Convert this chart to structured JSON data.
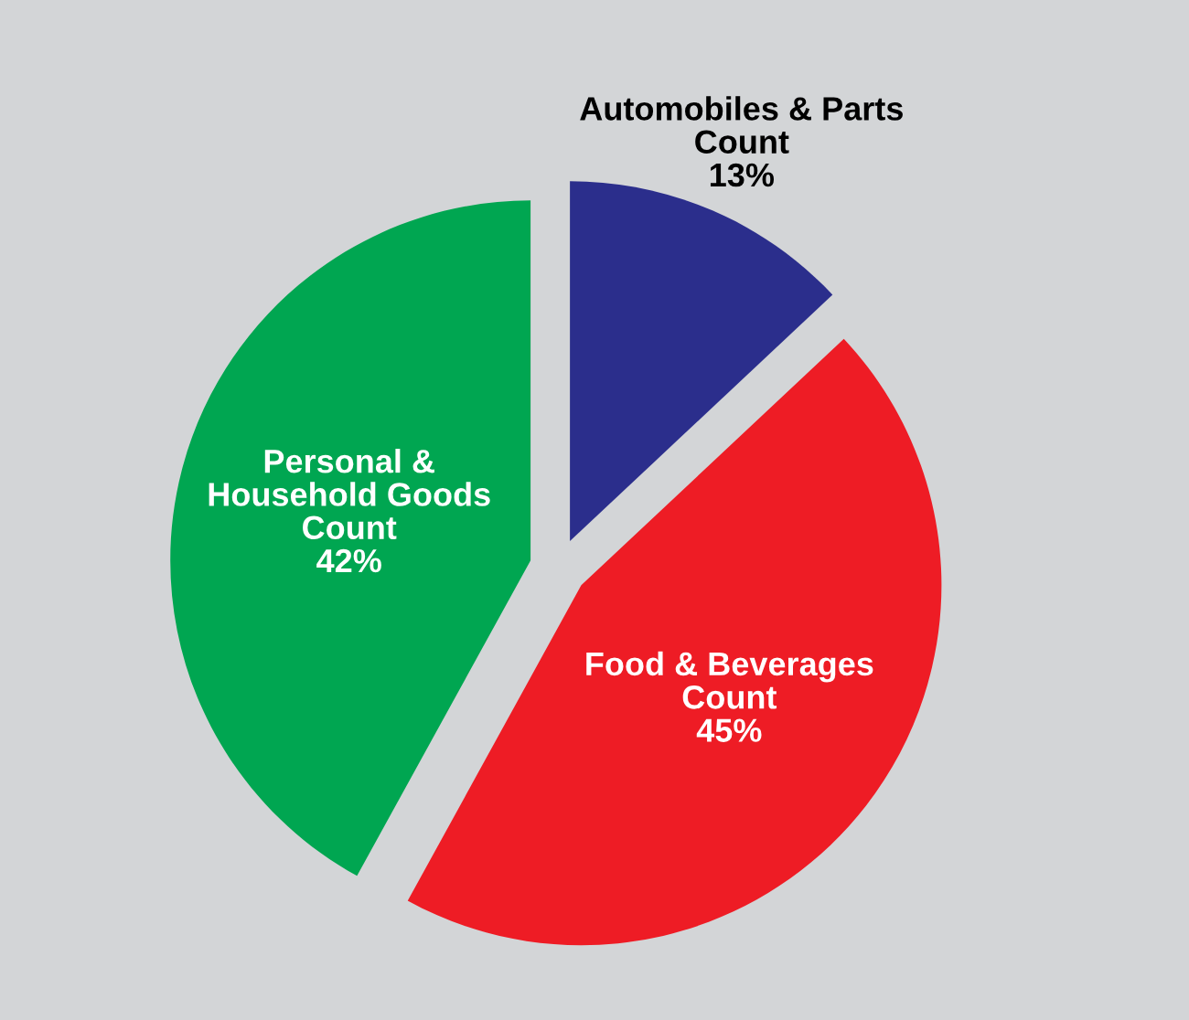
{
  "chart_data": {
    "type": "pie",
    "categories": [
      "Automobiles & Parts\nCount",
      "Food & Beverages\nCount",
      "Personal &\nHousehold Goods\nCount"
    ],
    "values": [
      13,
      45,
      42
    ],
    "value_labels": [
      "13%",
      "45%",
      "42%"
    ],
    "colors": [
      "#2b2e8c",
      "#ee1c25",
      "#00a651"
    ]
  }
}
